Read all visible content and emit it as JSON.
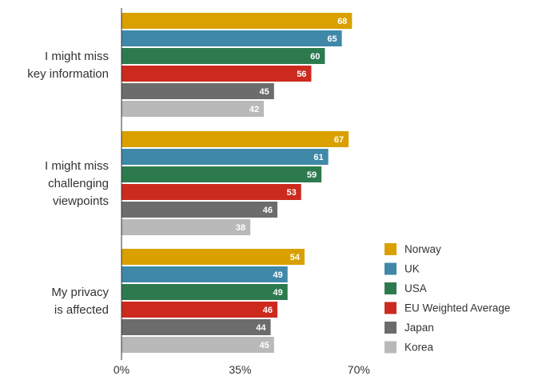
{
  "chart_data": {
    "type": "bar",
    "orientation": "horizontal",
    "categories": [
      [
        "I might miss",
        "key information"
      ],
      [
        "I might miss",
        "challenging",
        "viewpoints"
      ],
      [
        "My privacy",
        "is affected"
      ]
    ],
    "series": [
      {
        "name": "Norway",
        "color": "#d9a000",
        "values": [
          68,
          67,
          54
        ]
      },
      {
        "name": "UK",
        "color": "#3f88a8",
        "values": [
          65,
          61,
          49
        ]
      },
      {
        "name": "USA",
        "color": "#2d7a4f",
        "values": [
          60,
          59,
          49
        ]
      },
      {
        "name": "EU Weighted Average",
        "color": "#cc2a1e",
        "values": [
          56,
          53,
          46
        ]
      },
      {
        "name": "Japan",
        "color": "#6c6c6c",
        "values": [
          45,
          46,
          44
        ]
      },
      {
        "name": "Korea",
        "color": "#b9b9b9",
        "values": [
          42,
          38,
          45
        ]
      }
    ],
    "x_ticks": [
      "0%",
      "35%",
      "70%"
    ],
    "xlim": [
      0,
      70
    ],
    "legend_position": "right"
  }
}
